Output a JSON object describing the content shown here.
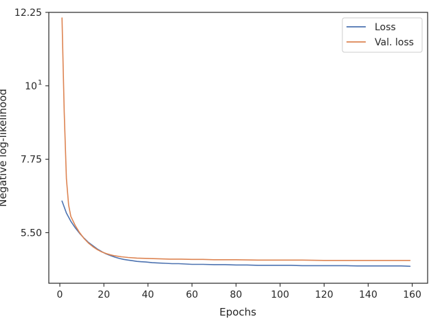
{
  "chart_data": {
    "type": "line",
    "title": "",
    "xlabel": "Epochs",
    "ylabel": "Negative log-likelihood",
    "xlim": [
      -5,
      167
    ],
    "ylim": [
      3.95,
      12.25
    ],
    "x_ticks": [
      0,
      20,
      40,
      60,
      80,
      100,
      120,
      140,
      160
    ],
    "y_ticks": [
      {
        "value": 5.5,
        "label": "5.50"
      },
      {
        "value": 7.75,
        "label": "7.75"
      },
      {
        "value": 10.0,
        "label": "10",
        "sup": "1"
      },
      {
        "value": 12.25,
        "label": "12.25"
      }
    ],
    "grid": false,
    "legend_position": "top-right",
    "series": [
      {
        "name": "Loss",
        "color": "#4c72b0",
        "x": [
          1,
          3,
          5,
          7,
          9,
          11,
          13,
          15,
          17,
          19,
          21,
          23,
          25,
          27,
          29,
          31,
          33,
          35,
          37,
          39,
          42,
          45,
          48,
          51,
          54,
          57,
          60,
          65,
          70,
          75,
          80,
          85,
          90,
          95,
          100,
          105,
          110,
          115,
          120,
          125,
          130,
          135,
          140,
          145,
          150,
          155,
          159
        ],
        "y": [
          6.47,
          6.1,
          5.85,
          5.65,
          5.48,
          5.33,
          5.2,
          5.1,
          5.0,
          4.92,
          4.85,
          4.8,
          4.75,
          4.71,
          4.68,
          4.66,
          4.64,
          4.62,
          4.61,
          4.6,
          4.58,
          4.57,
          4.56,
          4.55,
          4.55,
          4.54,
          4.53,
          4.53,
          4.52,
          4.52,
          4.51,
          4.51,
          4.5,
          4.5,
          4.5,
          4.5,
          4.49,
          4.49,
          4.49,
          4.49,
          4.49,
          4.48,
          4.48,
          4.48,
          4.48,
          4.48,
          4.47
        ]
      },
      {
        "name": "Val. loss",
        "color": "#dd8452",
        "x": [
          1,
          2,
          3,
          4,
          5,
          7,
          9,
          11,
          13,
          15,
          17,
          19,
          21,
          23,
          25,
          28,
          31,
          35,
          40,
          45,
          50,
          55,
          60,
          65,
          70,
          75,
          80,
          90,
          100,
          110,
          120,
          130,
          140,
          150,
          159
        ],
        "y": [
          12.08,
          9.2,
          7.15,
          6.35,
          6.0,
          5.72,
          5.5,
          5.32,
          5.18,
          5.07,
          4.98,
          4.91,
          4.86,
          4.82,
          4.79,
          4.76,
          4.74,
          4.72,
          4.71,
          4.7,
          4.69,
          4.69,
          4.68,
          4.68,
          4.67,
          4.67,
          4.67,
          4.66,
          4.66,
          4.66,
          4.65,
          4.65,
          4.65,
          4.65,
          4.65
        ]
      }
    ]
  }
}
